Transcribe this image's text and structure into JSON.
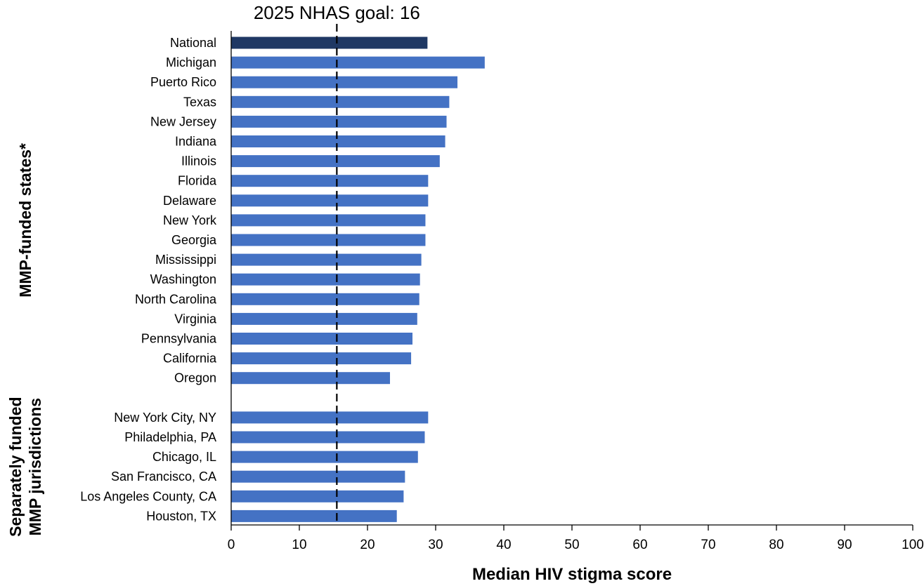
{
  "chart_data": {
    "type": "bar",
    "orientation": "horizontal",
    "xlabel": "Median HIV stigma score",
    "xlim": [
      0,
      100
    ],
    "xticks": [
      0,
      10,
      20,
      30,
      40,
      50,
      60,
      70,
      80,
      90,
      100
    ],
    "reference_line": {
      "value": 15.5,
      "label": "2025 NHAS goal: 16",
      "style": "dashed"
    },
    "colors": {
      "national": "#1f3864",
      "default": "#4472c4"
    },
    "groups": [
      {
        "label": "",
        "bars": [
          {
            "category": "National",
            "value": 28.8,
            "highlight": true
          }
        ]
      },
      {
        "label": "MMP-funded states*",
        "bars": [
          {
            "category": "Michigan",
            "value": 37.2
          },
          {
            "category": "Puerto Rico",
            "value": 33.2
          },
          {
            "category": "Texas",
            "value": 32.0
          },
          {
            "category": "New Jersey",
            "value": 31.6
          },
          {
            "category": "Indiana",
            "value": 31.4
          },
          {
            "category": "Illinois",
            "value": 30.6
          },
          {
            "category": "Florida",
            "value": 28.9
          },
          {
            "category": "Delaware",
            "value": 28.9
          },
          {
            "category": "New York",
            "value": 28.5
          },
          {
            "category": "Georgia",
            "value": 28.5
          },
          {
            "category": "Mississippi",
            "value": 27.9
          },
          {
            "category": "Washington",
            "value": 27.7
          },
          {
            "category": "North Carolina",
            "value": 27.6
          },
          {
            "category": "Virginia",
            "value": 27.3
          },
          {
            "category": "Pennsylvania",
            "value": 26.6
          },
          {
            "category": "California",
            "value": 26.4
          },
          {
            "category": "Oregon",
            "value": 23.3
          }
        ]
      },
      {
        "label": "Separately funded MMP jurisdictions",
        "label_lines": [
          "Separately funded",
          "MMP jurisdictions"
        ],
        "bars": [
          {
            "category": "New York City, NY",
            "value": 28.9
          },
          {
            "category": "Philadelphia, PA",
            "value": 28.4
          },
          {
            "category": "Chicago, IL",
            "value": 27.4
          },
          {
            "category": "San Francisco, CA",
            "value": 25.5
          },
          {
            "category": "Los Angeles County, CA",
            "value": 25.3
          },
          {
            "category": "Houston, TX",
            "value": 24.3
          }
        ]
      }
    ]
  }
}
